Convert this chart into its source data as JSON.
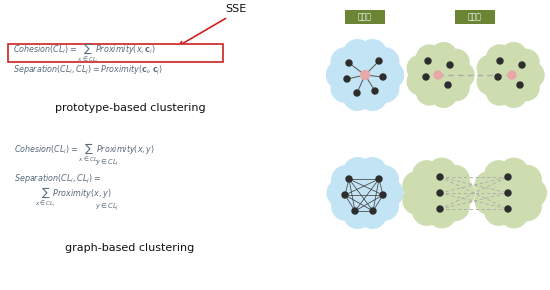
{
  "bg_color": "#ffffff",
  "sse_label": "SSE",
  "prototype_label": "prototype-based clustering",
  "graph_label": "graph-based clustering",
  "cohesion_label_kr": "응집도",
  "separation_label_kr": "분리도",
  "cloud_blue": "#c2e4f5",
  "cloud_green": "#cdddb0",
  "label_green_bg": "#6b8534",
  "node_color": "#2d2d2d",
  "center_node_color": "#e8a8a8",
  "arrow_color": "#cc2222",
  "box_border_color": "#cc2222",
  "dashed_line_color": "#aaaaaa",
  "text_color": "#5a6a7a",
  "black": "#111111"
}
